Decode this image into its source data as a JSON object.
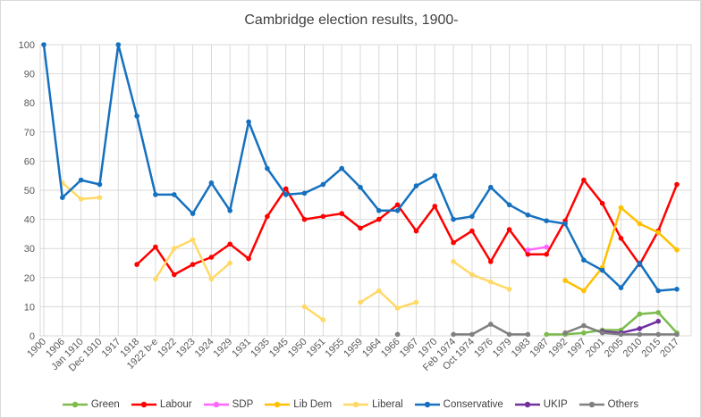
{
  "chart_data": {
    "type": "line",
    "title": "Cambridge election results, 1900-",
    "xlabel": "",
    "ylabel": "",
    "ylim": [
      0,
      100
    ],
    "yticks": [
      0,
      10,
      20,
      30,
      40,
      50,
      60,
      70,
      80,
      90,
      100
    ],
    "grid": {
      "horizontal": true,
      "vertical": true
    },
    "legend_position": "bottom",
    "colors": {
      "gridline": "#d9d9d9",
      "axis_labels": "#595959",
      "title": "#3f3f3f",
      "legend_text": "#404040",
      "background": "#ffffff"
    },
    "categories": [
      "1900",
      "1906",
      "Jan 1910",
      "Dec 1910",
      "1917",
      "1918",
      "1922 b-e",
      "1922",
      "1923",
      "1924",
      "1929",
      "1931",
      "1935",
      "1945",
      "1950",
      "1951",
      "1955",
      "1959",
      "1964",
      "1966",
      "1967",
      "1970",
      "Feb 1974",
      "Oct 1974",
      "1976",
      "1979",
      "1983",
      "1987",
      "1992",
      "1997",
      "2001",
      "2005",
      "2010",
      "2015",
      "2017"
    ],
    "series": [
      {
        "name": "Green",
        "color": "#7cbb4c",
        "values": [
          null,
          null,
          null,
          null,
          null,
          null,
          null,
          null,
          null,
          null,
          null,
          null,
          null,
          null,
          null,
          null,
          null,
          null,
          null,
          null,
          null,
          null,
          null,
          null,
          null,
          null,
          null,
          0.5,
          0.5,
          1,
          2,
          2,
          7.5,
          8,
          1
        ]
      },
      {
        "name": "Labour",
        "color": "#ff0000",
        "values": [
          null,
          null,
          null,
          null,
          null,
          24.5,
          30.5,
          21,
          24.5,
          27,
          31.5,
          26.5,
          41,
          50.5,
          40,
          41,
          42,
          37,
          40,
          45,
          36,
          44.5,
          32,
          36,
          25.5,
          36.5,
          28,
          28,
          39.5,
          53.5,
          45.5,
          33.5,
          24.5,
          36,
          52
        ]
      },
      {
        "name": "SDP",
        "color": "#ff66ff",
        "values": [
          null,
          null,
          null,
          null,
          null,
          null,
          null,
          null,
          null,
          null,
          null,
          null,
          null,
          null,
          null,
          null,
          null,
          null,
          null,
          null,
          null,
          null,
          null,
          null,
          null,
          null,
          29.5,
          30.5,
          null,
          null,
          null,
          null,
          null,
          null,
          null
        ]
      },
      {
        "name": "Lib Dem",
        "color": "#ffc000",
        "values": [
          null,
          null,
          null,
          null,
          null,
          null,
          null,
          null,
          null,
          null,
          null,
          null,
          null,
          null,
          null,
          null,
          null,
          null,
          null,
          null,
          null,
          null,
          null,
          null,
          null,
          null,
          null,
          null,
          19,
          15.5,
          23.5,
          44,
          38.5,
          35.5,
          29.5
        ]
      },
      {
        "name": "Liberal",
        "color": "#ffd966",
        "values": [
          null,
          52.5,
          47,
          47.5,
          null,
          null,
          19.5,
          30,
          33,
          19.5,
          25,
          null,
          null,
          null,
          10,
          5.5,
          null,
          11.5,
          15.5,
          9.5,
          11.5,
          null,
          25.5,
          21,
          18.5,
          16,
          null,
          null,
          null,
          null,
          null,
          null,
          null,
          null,
          null
        ]
      },
      {
        "name": "Conservative",
        "color": "#1571bf",
        "values": [
          100,
          47.5,
          53.5,
          52,
          100,
          75.5,
          48.5,
          48.5,
          42,
          52.5,
          43,
          73.5,
          57.5,
          48.5,
          49,
          52,
          57.5,
          51,
          43,
          43,
          51.5,
          55,
          40,
          41,
          51,
          45,
          41.5,
          39.5,
          38.5,
          26,
          22.5,
          16.5,
          25,
          15.5,
          16
        ]
      },
      {
        "name": "UKIP",
        "color": "#7030a0",
        "values": [
          null,
          null,
          null,
          null,
          null,
          null,
          null,
          null,
          null,
          null,
          null,
          null,
          null,
          null,
          null,
          null,
          null,
          null,
          null,
          null,
          null,
          null,
          null,
          null,
          null,
          null,
          null,
          null,
          null,
          null,
          1.5,
          1,
          2.5,
          5,
          null
        ]
      },
      {
        "name": "Others",
        "color": "#808080",
        "values": [
          null,
          null,
          null,
          null,
          null,
          null,
          null,
          null,
          null,
          null,
          null,
          null,
          null,
          null,
          null,
          null,
          null,
          null,
          null,
          0.5,
          null,
          null,
          0.5,
          0.5,
          4,
          0.5,
          0.5,
          null,
          1,
          3.5,
          1,
          0.5,
          0.5,
          0.5,
          0.5
        ]
      }
    ]
  }
}
